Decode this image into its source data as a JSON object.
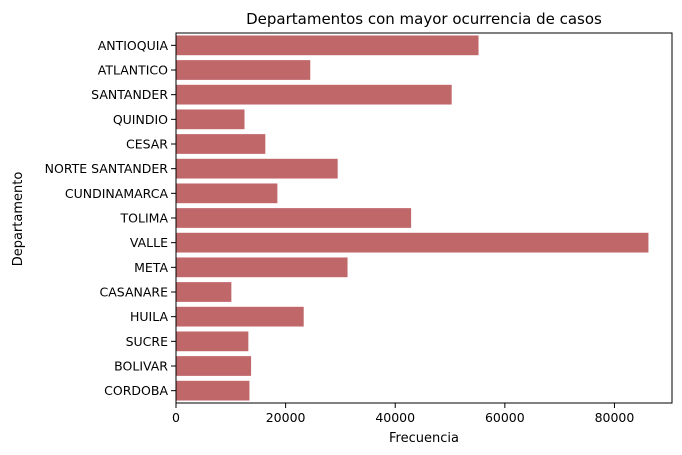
{
  "chart_data": {
    "type": "bar",
    "orientation": "horizontal",
    "title": "Departamentos con mayor ocurrencia de casos",
    "xlabel": "Frecuencia",
    "ylabel": "Departamento",
    "categories": [
      "ANTIOQUIA",
      "ATLANTICO",
      "SANTANDER",
      "QUINDIO",
      "CESAR",
      "NORTE SANTANDER",
      "CUNDINAMARCA",
      "TOLIMA",
      "VALLE",
      "META",
      "CASANARE",
      "HUILA",
      "SUCRE",
      "BOLIVAR",
      "CORDOBA"
    ],
    "values": [
      55200,
      24500,
      50300,
      12500,
      16300,
      29500,
      18500,
      42900,
      86200,
      31300,
      10100,
      23300,
      13200,
      13700,
      13400
    ],
    "xlim": [
      0,
      90500
    ],
    "xticks": [
      0,
      20000,
      40000,
      60000,
      80000
    ],
    "xtick_labels": [
      "0",
      "20000",
      "40000",
      "60000",
      "80000"
    ],
    "bar_color": "#c0676a",
    "grid": false,
    "legend": "none"
  }
}
